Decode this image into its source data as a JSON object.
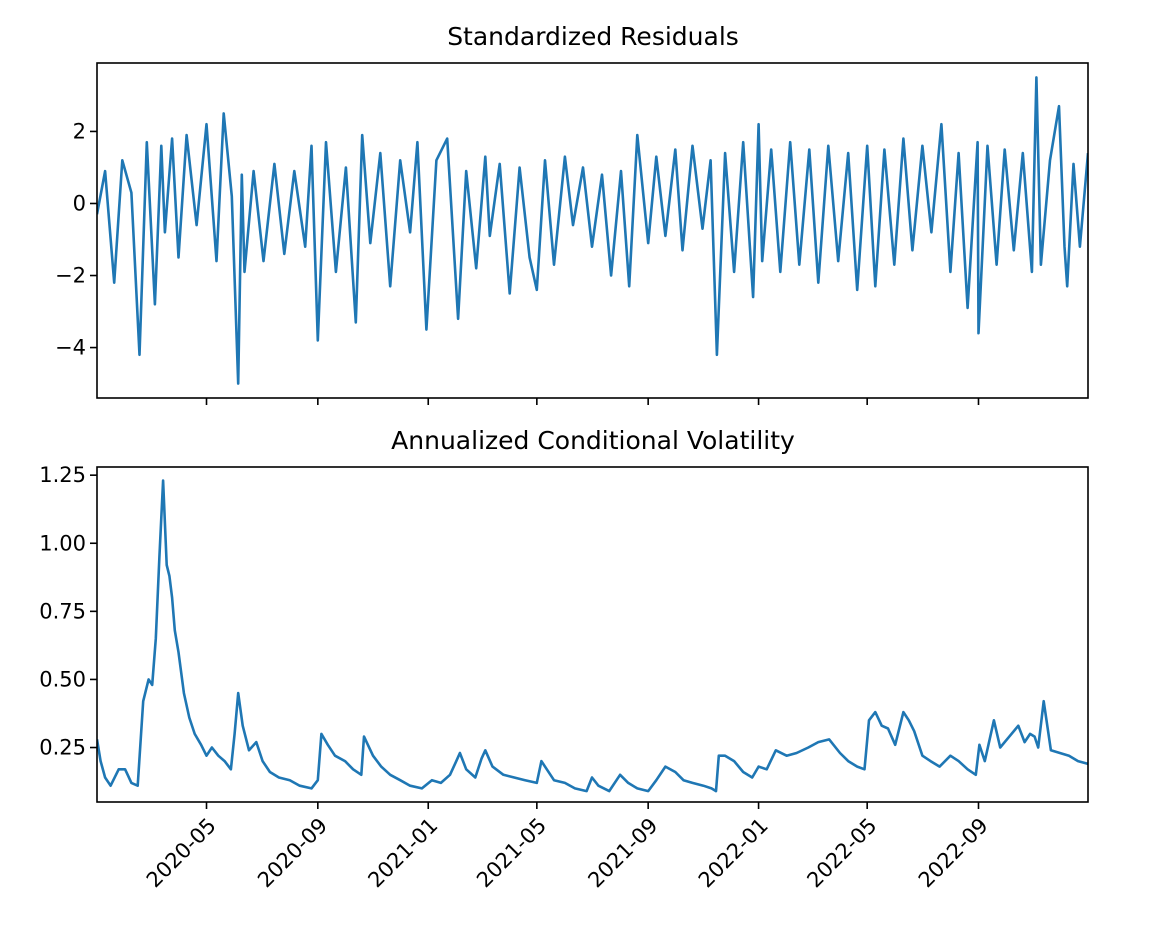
{
  "chart_data": [
    {
      "type": "line",
      "title": "Standardized Residuals",
      "xlabel": "",
      "ylabel": "",
      "xlim": [
        "2020-01-01",
        "2022-12-31"
      ],
      "ylim": [
        -5.4,
        3.9
      ],
      "yticks": [
        -4,
        -2,
        0,
        2
      ],
      "ytick_labels": [
        "−4",
        "−2",
        "0",
        "2"
      ],
      "xticks": [
        "2020-05-01",
        "2020-09-01",
        "2021-01-01",
        "2021-05-01",
        "2021-09-01",
        "2022-01-01",
        "2022-05-01",
        "2022-09-01"
      ],
      "xtick_labels": [],
      "grid": false,
      "color": "#1f77b4",
      "x": [
        "2020-01-01",
        "2020-01-10",
        "2020-01-20",
        "2020-01-29",
        "2020-02-08",
        "2020-02-17",
        "2020-02-25",
        "2020-03-05",
        "2020-03-12",
        "2020-03-16",
        "2020-03-24",
        "2020-03-31",
        "2020-04-09",
        "2020-04-20",
        "2020-05-01",
        "2020-05-12",
        "2020-05-20",
        "2020-05-29",
        "2020-06-05",
        "2020-06-09",
        "2020-06-12",
        "2020-06-22",
        "2020-07-03",
        "2020-07-15",
        "2020-07-26",
        "2020-08-06",
        "2020-08-18",
        "2020-08-25",
        "2020-09-01",
        "2020-09-10",
        "2020-09-21",
        "2020-10-02",
        "2020-10-13",
        "2020-10-20",
        "2020-10-29",
        "2020-11-09",
        "2020-11-20",
        "2020-12-01",
        "2020-12-12",
        "2020-12-20",
        "2020-12-30",
        "2021-01-10",
        "2021-01-22",
        "2021-02-03",
        "2021-02-12",
        "2021-02-23",
        "2021-03-05",
        "2021-03-10",
        "2021-03-21",
        "2021-04-01",
        "2021-04-12",
        "2021-04-23",
        "2021-05-01",
        "2021-05-10",
        "2021-05-20",
        "2021-06-01",
        "2021-06-10",
        "2021-06-21",
        "2021-07-01",
        "2021-07-12",
        "2021-07-22",
        "2021-08-02",
        "2021-08-11",
        "2021-08-20",
        "2021-09-01",
        "2021-09-10",
        "2021-09-20",
        "2021-10-01",
        "2021-10-09",
        "2021-10-20",
        "2021-10-31",
        "2021-11-09",
        "2021-11-16",
        "2021-11-25",
        "2021-12-05",
        "2021-12-15",
        "2021-12-26",
        "2022-01-01",
        "2022-01-05",
        "2022-01-15",
        "2022-01-25",
        "2022-02-05",
        "2022-02-15",
        "2022-02-26",
        "2022-03-08",
        "2022-03-19",
        "2022-03-30",
        "2022-04-10",
        "2022-04-20",
        "2022-05-01",
        "2022-05-10",
        "2022-05-20",
        "2022-05-31",
        "2022-06-10",
        "2022-06-20",
        "2022-07-01",
        "2022-07-11",
        "2022-07-22",
        "2022-08-01",
        "2022-08-10",
        "2022-08-20",
        "2022-08-31",
        "2022-09-01",
        "2022-09-11",
        "2022-09-21",
        "2022-09-30",
        "2022-10-10",
        "2022-10-20",
        "2022-10-30",
        "2022-11-04",
        "2022-11-09",
        "2022-11-19",
        "2022-11-29",
        "2022-12-05",
        "2022-12-08",
        "2022-12-15",
        "2022-12-22",
        "2022-12-31"
      ],
      "values": [
        -0.3,
        0.9,
        -2.2,
        1.2,
        0.3,
        -4.2,
        1.7,
        -2.8,
        1.6,
        -0.8,
        1.8,
        -1.5,
        1.9,
        -0.6,
        2.2,
        -1.6,
        2.5,
        0.2,
        -5.0,
        0.8,
        -1.9,
        0.9,
        -1.6,
        1.1,
        -1.4,
        0.9,
        -1.2,
        1.6,
        -3.8,
        1.7,
        -1.9,
        1.0,
        -3.3,
        1.9,
        -1.1,
        1.4,
        -2.3,
        1.2,
        -0.8,
        1.7,
        -3.5,
        1.2,
        1.8,
        -3.2,
        0.9,
        -1.8,
        1.3,
        -0.9,
        1.1,
        -2.5,
        1.0,
        -1.5,
        -2.4,
        1.2,
        -1.7,
        1.3,
        -0.6,
        1.0,
        -1.2,
        0.8,
        -2.0,
        0.9,
        -2.3,
        1.9,
        -1.1,
        1.3,
        -0.9,
        1.5,
        -1.3,
        1.6,
        -0.7,
        1.2,
        -4.2,
        1.4,
        -1.9,
        1.7,
        -2.6,
        2.2,
        -1.6,
        1.5,
        -1.9,
        1.7,
        -1.7,
        1.5,
        -2.2,
        1.6,
        -1.6,
        1.4,
        -2.4,
        1.6,
        -2.3,
        1.5,
        -1.7,
        1.8,
        -1.3,
        1.6,
        -0.8,
        2.2,
        -1.9,
        1.4,
        -2.9,
        1.7,
        -3.6,
        1.6,
        -1.7,
        1.5,
        -1.3,
        1.4,
        -1.9,
        3.5,
        -1.7,
        1.2,
        2.7,
        -1.2,
        -2.3,
        1.1,
        -1.2,
        1.4
      ]
    },
    {
      "type": "line",
      "title": "Annualized Conditional Volatility",
      "xlabel": "",
      "ylabel": "",
      "xlim": [
        "2020-01-01",
        "2022-12-31"
      ],
      "ylim": [
        0.05,
        1.28
      ],
      "yticks": [
        0.25,
        0.5,
        0.75,
        1.0,
        1.25
      ],
      "ytick_labels": [
        "0.25",
        "0.50",
        "0.75",
        "1.00",
        "1.25"
      ],
      "xticks": [
        "2020-05-01",
        "2020-09-01",
        "2021-01-01",
        "2021-05-01",
        "2021-09-01",
        "2022-01-01",
        "2022-05-01",
        "2022-09-01"
      ],
      "xtick_labels": [
        "2020-05",
        "2020-09",
        "2021-01",
        "2021-05",
        "2021-09",
        "2022-01",
        "2022-05",
        "2022-09"
      ],
      "grid": false,
      "color": "#1f77b4",
      "x": [
        "2020-01-01",
        "2020-01-05",
        "2020-01-10",
        "2020-01-16",
        "2020-01-25",
        "2020-02-01",
        "2020-02-08",
        "2020-02-15",
        "2020-02-21",
        "2020-02-27",
        "2020-03-02",
        "2020-03-06",
        "2020-03-10",
        "2020-03-14",
        "2020-03-18",
        "2020-03-21",
        "2020-03-24",
        "2020-03-27",
        "2020-03-31",
        "2020-04-06",
        "2020-04-12",
        "2020-04-18",
        "2020-04-25",
        "2020-05-01",
        "2020-05-07",
        "2020-05-14",
        "2020-05-21",
        "2020-05-28",
        "2020-06-01",
        "2020-06-05",
        "2020-06-10",
        "2020-06-17",
        "2020-06-25",
        "2020-07-02",
        "2020-07-10",
        "2020-07-20",
        "2020-08-01",
        "2020-08-12",
        "2020-08-25",
        "2020-09-01",
        "2020-09-05",
        "2020-09-12",
        "2020-09-20",
        "2020-10-01",
        "2020-10-10",
        "2020-10-19",
        "2020-10-22",
        "2020-11-01",
        "2020-11-10",
        "2020-11-20",
        "2020-12-01",
        "2020-12-12",
        "2020-12-25",
        "2021-01-05",
        "2021-01-15",
        "2021-01-25",
        "2021-02-01",
        "2021-02-05",
        "2021-02-12",
        "2021-02-22",
        "2021-03-01",
        "2021-03-05",
        "2021-03-13",
        "2021-03-25",
        "2021-04-06",
        "2021-04-18",
        "2021-05-01",
        "2021-05-06",
        "2021-05-12",
        "2021-05-20",
        "2021-06-01",
        "2021-06-12",
        "2021-06-25",
        "2021-07-01",
        "2021-07-08",
        "2021-07-20",
        "2021-08-01",
        "2021-08-10",
        "2021-08-20",
        "2021-09-01",
        "2021-09-10",
        "2021-09-20",
        "2021-10-01",
        "2021-10-10",
        "2021-10-20",
        "2021-11-01",
        "2021-11-10",
        "2021-11-15",
        "2021-11-18",
        "2021-11-25",
        "2021-12-05",
        "2021-12-15",
        "2021-12-25",
        "2022-01-01",
        "2022-01-10",
        "2022-01-20",
        "2022-02-01",
        "2022-02-12",
        "2022-02-25",
        "2022-03-08",
        "2022-03-20",
        "2022-04-01",
        "2022-04-10",
        "2022-04-20",
        "2022-04-28",
        "2022-05-03",
        "2022-05-10",
        "2022-05-17",
        "2022-05-24",
        "2022-06-01",
        "2022-06-10",
        "2022-06-16",
        "2022-06-22",
        "2022-07-01",
        "2022-07-10",
        "2022-07-20",
        "2022-08-01",
        "2022-08-10",
        "2022-08-20",
        "2022-08-29",
        "2022-09-02",
        "2022-09-08",
        "2022-09-18",
        "2022-09-25",
        "2022-10-05",
        "2022-10-15",
        "2022-10-22",
        "2022-10-28",
        "2022-11-02",
        "2022-11-06",
        "2022-11-12",
        "2022-11-20",
        "2022-11-30",
        "2022-12-10",
        "2022-12-20",
        "2022-12-31"
      ],
      "values": [
        0.28,
        0.2,
        0.14,
        0.11,
        0.17,
        0.17,
        0.12,
        0.11,
        0.42,
        0.5,
        0.48,
        0.65,
        0.95,
        1.23,
        0.92,
        0.88,
        0.8,
        0.68,
        0.6,
        0.45,
        0.36,
        0.3,
        0.26,
        0.22,
        0.25,
        0.22,
        0.2,
        0.17,
        0.3,
        0.45,
        0.33,
        0.24,
        0.27,
        0.2,
        0.16,
        0.14,
        0.13,
        0.11,
        0.1,
        0.13,
        0.3,
        0.26,
        0.22,
        0.2,
        0.17,
        0.15,
        0.29,
        0.22,
        0.18,
        0.15,
        0.13,
        0.11,
        0.1,
        0.13,
        0.12,
        0.15,
        0.2,
        0.23,
        0.17,
        0.14,
        0.21,
        0.24,
        0.18,
        0.15,
        0.14,
        0.13,
        0.12,
        0.2,
        0.17,
        0.13,
        0.12,
        0.1,
        0.09,
        0.14,
        0.11,
        0.09,
        0.15,
        0.12,
        0.1,
        0.09,
        0.13,
        0.18,
        0.16,
        0.13,
        0.12,
        0.11,
        0.1,
        0.09,
        0.22,
        0.22,
        0.2,
        0.16,
        0.14,
        0.18,
        0.17,
        0.24,
        0.22,
        0.23,
        0.25,
        0.27,
        0.28,
        0.23,
        0.2,
        0.18,
        0.17,
        0.35,
        0.38,
        0.33,
        0.32,
        0.26,
        0.38,
        0.35,
        0.31,
        0.22,
        0.2,
        0.18,
        0.22,
        0.2,
        0.17,
        0.15,
        0.26,
        0.2,
        0.35,
        0.25,
        0.29,
        0.33,
        0.27,
        0.3,
        0.29,
        0.25,
        0.42,
        0.24,
        0.23,
        0.22,
        0.2,
        0.19
      ]
    }
  ]
}
